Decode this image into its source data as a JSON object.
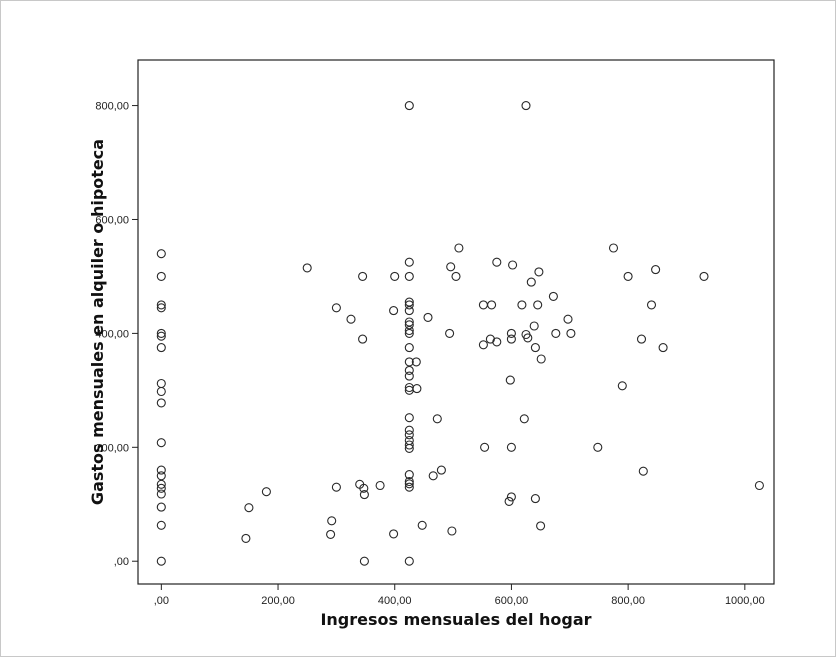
{
  "chart_data": {
    "type": "scatter",
    "title": "",
    "xlabel": "Ingresos mensuales del hogar",
    "ylabel": "Gastos mensuales en alquiler o hipoteca",
    "xlim": [
      -40,
      1050
    ],
    "ylim": [
      -40,
      880
    ],
    "xticks": [
      0,
      200,
      400,
      600,
      800,
      1000
    ],
    "xtick_labels": [
      ",00",
      "200,00",
      "400,00",
      "600,00",
      "800,00",
      "1000,00"
    ],
    "yticks": [
      0,
      200,
      400,
      600,
      800
    ],
    "ytick_labels": [
      ",00",
      "200,00",
      "400,00",
      "600,00",
      "800,00"
    ],
    "grid": false,
    "marker": "open-circle",
    "points": [
      [
        0,
        540
      ],
      [
        0,
        500
      ],
      [
        0,
        450
      ],
      [
        0,
        445
      ],
      [
        0,
        400
      ],
      [
        0,
        395
      ],
      [
        0,
        375
      ],
      [
        0,
        312
      ],
      [
        0,
        298
      ],
      [
        0,
        278
      ],
      [
        0,
        208
      ],
      [
        0,
        160
      ],
      [
        0,
        150
      ],
      [
        0,
        135
      ],
      [
        0,
        128
      ],
      [
        0,
        118
      ],
      [
        0,
        95
      ],
      [
        0,
        63
      ],
      [
        0,
        0
      ],
      [
        145,
        40
      ],
      [
        150,
        94
      ],
      [
        180,
        122
      ],
      [
        250,
        515
      ],
      [
        290,
        47
      ],
      [
        292,
        71
      ],
      [
        300,
        130
      ],
      [
        300,
        445
      ],
      [
        325,
        425
      ],
      [
        340,
        135
      ],
      [
        345,
        500
      ],
      [
        345,
        390
      ],
      [
        347,
        128
      ],
      [
        348,
        117
      ],
      [
        348,
        0
      ],
      [
        375,
        133
      ],
      [
        398,
        48
      ],
      [
        398,
        440
      ],
      [
        400,
        500
      ],
      [
        425,
        800
      ],
      [
        425,
        525
      ],
      [
        425,
        500
      ],
      [
        425,
        455
      ],
      [
        425,
        450
      ],
      [
        425,
        440
      ],
      [
        425,
        420
      ],
      [
        425,
        415
      ],
      [
        425,
        405
      ],
      [
        425,
        400
      ],
      [
        425,
        375
      ],
      [
        425,
        350
      ],
      [
        425,
        335
      ],
      [
        425,
        325
      ],
      [
        425,
        305
      ],
      [
        425,
        300
      ],
      [
        425,
        252
      ],
      [
        425,
        230
      ],
      [
        425,
        222
      ],
      [
        425,
        212
      ],
      [
        425,
        204
      ],
      [
        425,
        198
      ],
      [
        425,
        152
      ],
      [
        425,
        140
      ],
      [
        425,
        136
      ],
      [
        425,
        130
      ],
      [
        425,
        0
      ],
      [
        437,
        350
      ],
      [
        438,
        303
      ],
      [
        447,
        63
      ],
      [
        457,
        428
      ],
      [
        466,
        150
      ],
      [
        473,
        250
      ],
      [
        480,
        160
      ],
      [
        494,
        400
      ],
      [
        496,
        517
      ],
      [
        498,
        53
      ],
      [
        505,
        500
      ],
      [
        510,
        550
      ],
      [
        552,
        450
      ],
      [
        552,
        380
      ],
      [
        554,
        200
      ],
      [
        564,
        390
      ],
      [
        566,
        450
      ],
      [
        575,
        525
      ],
      [
        575,
        385
      ],
      [
        596,
        105
      ],
      [
        598,
        318
      ],
      [
        600,
        113
      ],
      [
        600,
        200
      ],
      [
        600,
        400
      ],
      [
        600,
        390
      ],
      [
        602,
        520
      ],
      [
        618,
        450
      ],
      [
        622,
        250
      ],
      [
        625,
        800
      ],
      [
        625,
        398
      ],
      [
        628,
        392
      ],
      [
        634,
        490
      ],
      [
        639,
        413
      ],
      [
        641,
        375
      ],
      [
        641,
        110
      ],
      [
        645,
        450
      ],
      [
        647,
        508
      ],
      [
        650,
        62
      ],
      [
        651,
        355
      ],
      [
        672,
        465
      ],
      [
        676,
        400
      ],
      [
        697,
        425
      ],
      [
        702,
        400
      ],
      [
        748,
        200
      ],
      [
        775,
        550
      ],
      [
        790,
        308
      ],
      [
        800,
        500
      ],
      [
        823,
        390
      ],
      [
        826,
        158
      ],
      [
        840,
        450
      ],
      [
        847,
        512
      ],
      [
        860,
        375
      ],
      [
        930,
        500
      ],
      [
        1025,
        133
      ]
    ]
  }
}
